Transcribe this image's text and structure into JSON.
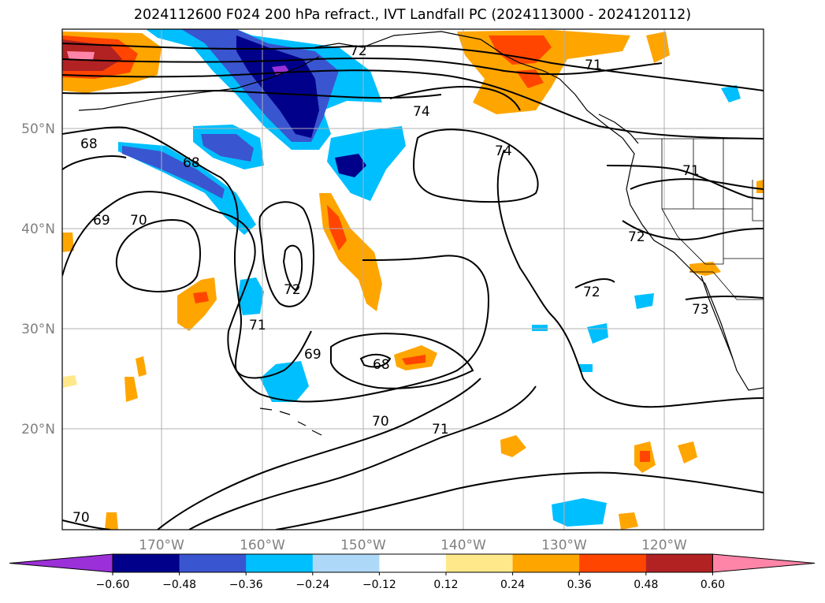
{
  "title": "2024112600 F024 200 hPa refract., IVT Landfall PC (2024113000 - 2024120112)",
  "lon_labels": [
    "170°W",
    "160°W",
    "150°W",
    "140°W",
    "130°W",
    "120°W"
  ],
  "lat_labels": [
    "50°N",
    "40°N",
    "30°N",
    "20°N"
  ],
  "contour_labels": [
    "72",
    "74",
    "71",
    "68",
    "68",
    "70",
    "69",
    "74",
    "72",
    "71",
    "69",
    "68",
    "70",
    "71",
    "72",
    "72",
    "71",
    "73",
    "70"
  ],
  "colorbar": {
    "colors": [
      "#9b30d8",
      "#00008b",
      "#3a55d0",
      "#00bfff",
      "#add8f7",
      "#ffffff",
      "#ffe88a",
      "#ffa500",
      "#ff4500",
      "#b22222",
      "#ff85a8"
    ],
    "tick_labels": [
      "−0.60",
      "−0.48",
      "−0.36",
      "−0.24",
      "−0.12",
      "0.12",
      "0.24",
      "0.36",
      "0.48",
      "0.60"
    ]
  }
}
